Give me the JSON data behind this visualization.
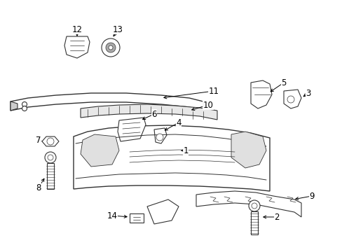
{
  "bg_color": "#ffffff",
  "line_color": "#333333",
  "label_color": "#000000",
  "label_fontsize": 8.5,
  "figsize": [
    4.89,
    3.6
  ],
  "dpi": 100
}
